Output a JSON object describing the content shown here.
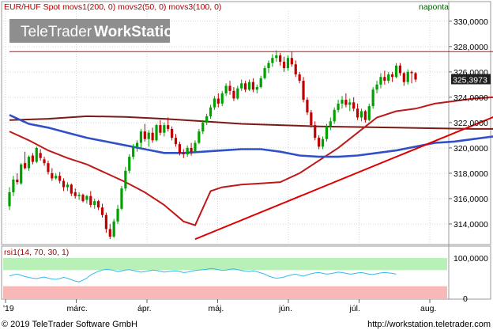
{
  "header": {
    "legend": "EUR/HUF Spot movs1(200, 0) movs2(50, 0) movs3(100, 0)",
    "period": "naponta",
    "watermark_light": "TeleTrader",
    "watermark_bold": "WorkStation"
  },
  "indicator": {
    "label": "rsi1(14, 70, 30, 1)"
  },
  "footer": {
    "copyright": "© 2019 TeleTrader Software GmbH",
    "url": "http://workstation.teletrader.com"
  },
  "colors": {
    "price_up": "#00a000",
    "price_down": "#c00000",
    "ma_blue": "#3050c8",
    "ma_red": "#c01818",
    "ma_brown": "#7a1a14",
    "trendline": "#e00000",
    "resistance": "#e00000",
    "rsi_line": "#33bbee",
    "rsi_overbought": "#b8f0b8",
    "rsi_oversold": "#f8b8b8",
    "legend_text": "#b00000",
    "period_text": "#006000"
  },
  "chart_data": {
    "type": "candlestick",
    "title": "EUR/HUF Spot",
    "x_labels": [
      "'19",
      "márc.",
      "ápr.",
      "máj.",
      "jún.",
      "júl.",
      "aug."
    ],
    "y_ticks": [
      "314,0000",
      "316,0000",
      "318,0000",
      "320,0000",
      "322,0000",
      "324,0000",
      "326,0000",
      "328,0000",
      "330,0000"
    ],
    "ylim": [
      312.5,
      330.8
    ],
    "last_price": "325,3973",
    "grid": true,
    "series": [
      {
        "name": "movs1(200, 0)",
        "color": "#7a1a14",
        "values": [
          [
            0,
            322.2
          ],
          [
            10,
            322.3
          ],
          [
            20,
            322.5
          ],
          [
            30,
            322.45
          ],
          [
            40,
            322.3
          ],
          [
            50,
            322.1
          ],
          [
            60,
            321.9
          ],
          [
            70,
            321.8
          ],
          [
            80,
            321.7
          ],
          [
            90,
            321.65
          ],
          [
            100,
            321.6
          ],
          [
            110,
            321.55
          ],
          [
            120,
            321.5
          ],
          [
            130,
            321.5
          ],
          [
            140,
            321.45
          ],
          [
            146,
            321.5
          ]
        ]
      },
      {
        "name": "movs2(50, 0)",
        "color": "#c01818",
        "values": [
          [
            0,
            321.3
          ],
          [
            5,
            320.6
          ],
          [
            10,
            319.8
          ],
          [
            15,
            319.2
          ],
          [
            20,
            318.7
          ],
          [
            25,
            318.0
          ],
          [
            30,
            317.3
          ],
          [
            35,
            316.5
          ],
          [
            40,
            315.5
          ],
          [
            45,
            314.2
          ],
          [
            48,
            313.9
          ],
          [
            52,
            316.6
          ],
          [
            55,
            316.9
          ],
          [
            60,
            317.1
          ],
          [
            65,
            317.2
          ],
          [
            70,
            317.3
          ],
          [
            75,
            318.0
          ],
          [
            80,
            319.0
          ],
          [
            85,
            320.0
          ],
          [
            90,
            321.2
          ],
          [
            95,
            322.4
          ],
          [
            100,
            322.9
          ],
          [
            105,
            323.1
          ],
          [
            110,
            323.5
          ],
          [
            115,
            323.7
          ],
          [
            120,
            323.9
          ],
          [
            125,
            324.0
          ],
          [
            130,
            324.1
          ],
          [
            135,
            324.2
          ],
          [
            140,
            324.3
          ]
        ]
      },
      {
        "name": "movs3(100, 0)",
        "color": "#3050c8",
        "values": [
          [
            0,
            322.6
          ],
          [
            5,
            321.9
          ],
          [
            10,
            321.6
          ],
          [
            15,
            321.2
          ],
          [
            20,
            320.8
          ],
          [
            25,
            320.5
          ],
          [
            30,
            320.2
          ],
          [
            35,
            319.9
          ],
          [
            40,
            319.6
          ],
          [
            45,
            319.6
          ],
          [
            50,
            319.7
          ],
          [
            55,
            319.8
          ],
          [
            60,
            319.9
          ],
          [
            65,
            319.9
          ],
          [
            70,
            319.7
          ],
          [
            75,
            319.4
          ],
          [
            80,
            319.3
          ],
          [
            85,
            319.3
          ],
          [
            90,
            319.4
          ],
          [
            95,
            319.6
          ],
          [
            100,
            319.8
          ],
          [
            105,
            320.1
          ],
          [
            110,
            320.4
          ],
          [
            115,
            320.5
          ],
          [
            120,
            320.7
          ],
          [
            125,
            320.9
          ],
          [
            130,
            321.1
          ],
          [
            135,
            321.6
          ],
          [
            140,
            322.2
          ]
        ]
      },
      {
        "name": "trendline",
        "color": "#e00000",
        "values": [
          [
            48,
            312.8
          ],
          [
            148,
            325.3
          ]
        ]
      },
      {
        "name": "resistance",
        "color": "#e00000",
        "values": [
          [
            0,
            327.6
          ],
          [
            148,
            327.6
          ]
        ]
      }
    ],
    "candles": [
      [
        315.4,
        316.9,
        315.1,
        316.5
      ],
      [
        316.5,
        317.8,
        316.2,
        317.5
      ],
      [
        317.5,
        318.0,
        317.1,
        317.3
      ],
      [
        317.2,
        318.8,
        317.1,
        318.7
      ],
      [
        318.8,
        319.7,
        318.3,
        318.4
      ],
      [
        318.4,
        319.4,
        318.2,
        319.3
      ],
      [
        319.4,
        319.6,
        318.7,
        318.9
      ],
      [
        318.9,
        320.1,
        318.8,
        320.0
      ],
      [
        319.6,
        319.9,
        319.0,
        319.2
      ],
      [
        319.1,
        319.3,
        318.6,
        318.8
      ],
      [
        318.8,
        319.0,
        317.9,
        318.1
      ],
      [
        318.0,
        318.4,
        317.4,
        317.6
      ],
      [
        317.6,
        318.0,
        317.5,
        317.8
      ],
      [
        317.8,
        318.1,
        317.2,
        317.4
      ],
      [
        317.4,
        317.6,
        316.6,
        316.9
      ],
      [
        316.9,
        317.3,
        316.6,
        317.1
      ],
      [
        317.1,
        317.2,
        316.2,
        316.4
      ],
      [
        316.5,
        316.8,
        316.0,
        316.2
      ],
      [
        316.2,
        316.5,
        315.9,
        316.3
      ],
      [
        316.3,
        316.4,
        315.7,
        315.8
      ],
      [
        315.9,
        316.3,
        315.6,
        316.2
      ],
      [
        316.2,
        316.6,
        315.3,
        315.5
      ],
      [
        315.5,
        316.0,
        315.2,
        315.8
      ],
      [
        315.8,
        315.9,
        315.1,
        315.3
      ],
      [
        315.3,
        315.6,
        314.5,
        314.7
      ],
      [
        314.7,
        314.9,
        313.3,
        313.6
      ],
      [
        313.6,
        314.0,
        312.8,
        313.0
      ],
      [
        313.0,
        314.4,
        312.9,
        314.2
      ],
      [
        314.2,
        315.5,
        314.0,
        315.2
      ],
      [
        315.2,
        317.0,
        315.1,
        316.8
      ],
      [
        316.8,
        318.5,
        316.6,
        318.2
      ],
      [
        318.2,
        319.5,
        318.0,
        319.3
      ],
      [
        319.3,
        320.3,
        319.1,
        320.1
      ],
      [
        320.1,
        320.6,
        319.7,
        320.4
      ],
      [
        320.4,
        321.5,
        320.0,
        321.3
      ],
      [
        321.3,
        321.9,
        320.5,
        320.7
      ],
      [
        320.7,
        321.4,
        320.1,
        321.2
      ],
      [
        321.2,
        321.6,
        320.4,
        320.6
      ],
      [
        320.6,
        321.9,
        320.5,
        321.8
      ],
      [
        321.8,
        322.2,
        321.0,
        321.2
      ],
      [
        321.2,
        322.0,
        320.9,
        321.8
      ],
      [
        321.8,
        322.4,
        321.3,
        321.5
      ],
      [
        321.5,
        321.7,
        320.6,
        320.8
      ],
      [
        320.8,
        321.1,
        320.1,
        320.3
      ],
      [
        320.3,
        320.5,
        319.4,
        319.6
      ],
      [
        319.6,
        319.9,
        319.2,
        319.5
      ],
      [
        319.5,
        320.2,
        319.3,
        320.0
      ],
      [
        320.0,
        320.4,
        319.4,
        319.7
      ],
      [
        319.7,
        320.6,
        319.6,
        320.4
      ],
      [
        320.4,
        321.5,
        320.3,
        321.3
      ],
      [
        321.3,
        322.2,
        321.1,
        322.0
      ],
      [
        322.0,
        322.7,
        321.8,
        322.5
      ],
      [
        322.5,
        323.4,
        322.3,
        323.2
      ],
      [
        323.2,
        324.1,
        323.0,
        323.9
      ],
      [
        323.9,
        324.3,
        323.2,
        323.5
      ],
      [
        323.5,
        324.5,
        323.3,
        324.3
      ],
      [
        324.3,
        325.1,
        324.1,
        324.9
      ],
      [
        324.9,
        325.3,
        324.2,
        324.5
      ],
      [
        324.5,
        324.8,
        323.7,
        323.9
      ],
      [
        323.9,
        324.9,
        323.8,
        324.7
      ],
      [
        324.7,
        325.4,
        324.5,
        325.1
      ],
      [
        325.1,
        325.3,
        324.4,
        324.6
      ],
      [
        324.6,
        325.4,
        324.5,
        325.2
      ],
      [
        325.2,
        325.5,
        324.4,
        324.6
      ],
      [
        324.6,
        325.0,
        324.3,
        324.8
      ],
      [
        324.8,
        325.7,
        324.7,
        325.5
      ],
      [
        325.5,
        326.5,
        325.4,
        326.3
      ],
      [
        326.3,
        326.9,
        325.9,
        326.7
      ],
      [
        326.7,
        327.4,
        326.4,
        327.1
      ],
      [
        327.1,
        327.7,
        326.8,
        327.3
      ],
      [
        327.3,
        327.5,
        326.5,
        326.8
      ],
      [
        326.8,
        327.2,
        326.0,
        326.3
      ],
      [
        326.3,
        327.3,
        326.1,
        327.1
      ],
      [
        327.1,
        327.6,
        326.4,
        326.6
      ],
      [
        326.6,
        326.9,
        325.6,
        325.8
      ],
      [
        325.8,
        326.0,
        325.1,
        325.3
      ],
      [
        325.3,
        325.6,
        323.6,
        323.8
      ],
      [
        323.8,
        324.0,
        322.6,
        322.8
      ],
      [
        322.8,
        323.0,
        321.6,
        321.8
      ],
      [
        321.8,
        322.1,
        320.6,
        320.8
      ],
      [
        320.8,
        321.0,
        319.9,
        320.1
      ],
      [
        320.1,
        320.9,
        319.9,
        320.7
      ],
      [
        320.7,
        321.9,
        320.5,
        321.7
      ],
      [
        321.7,
        322.4,
        321.4,
        322.1
      ],
      [
        322.1,
        323.2,
        321.9,
        323.0
      ],
      [
        323.0,
        323.8,
        322.8,
        323.5
      ],
      [
        323.5,
        324.1,
        323.1,
        323.8
      ],
      [
        323.8,
        324.3,
        323.2,
        323.4
      ],
      [
        323.4,
        323.9,
        322.9,
        323.6
      ],
      [
        323.6,
        324.0,
        322.9,
        323.1
      ],
      [
        323.1,
        323.5,
        322.2,
        322.4
      ],
      [
        322.4,
        323.1,
        322.1,
        322.9
      ],
      [
        322.9,
        323.0,
        322.0,
        322.2
      ],
      [
        322.2,
        323.5,
        322.1,
        323.3
      ],
      [
        323.3,
        324.8,
        323.1,
        324.6
      ],
      [
        324.6,
        325.3,
        324.3,
        325.0
      ],
      [
        325.0,
        325.9,
        324.7,
        325.6
      ],
      [
        325.6,
        326.1,
        325.0,
        325.3
      ],
      [
        325.3,
        326.0,
        325.1,
        325.8
      ],
      [
        325.8,
        326.0,
        325.2,
        325.6
      ],
      [
        325.6,
        326.7,
        325.5,
        326.5
      ],
      [
        326.5,
        326.7,
        325.7,
        325.9
      ],
      [
        325.9,
        326.0,
        324.9,
        325.2
      ],
      [
        325.2,
        326.2,
        325.0,
        326.0
      ],
      [
        326.0,
        326.1,
        325.1,
        325.9
      ],
      [
        325.9,
        326.0,
        325.2,
        325.4
      ]
    ],
    "rsi": {
      "name": "rsi1(14, 70, 30, 1)",
      "y_ticks": [
        "0",
        "100,0000"
      ],
      "ylim": [
        0,
        100
      ],
      "overbought": 70,
      "oversold": 30,
      "values": [
        55,
        58,
        60,
        57,
        54,
        52,
        50,
        49,
        51,
        53,
        50,
        48,
        47,
        49,
        52,
        50,
        46,
        43,
        41,
        45,
        50,
        58,
        63,
        67,
        70,
        72,
        71,
        69,
        66,
        68,
        70,
        71,
        69,
        67,
        65,
        66,
        68,
        70,
        69,
        67,
        65,
        66,
        67,
        68,
        66,
        64,
        65,
        67,
        69,
        70,
        71,
        72,
        74,
        73,
        71,
        69,
        70,
        72,
        73,
        71,
        69,
        67,
        66,
        68,
        66,
        63,
        60,
        55,
        52,
        50,
        51,
        53,
        56,
        58,
        60,
        57,
        55,
        58,
        61,
        63,
        64,
        62,
        60,
        61,
        63,
        65,
        64,
        62,
        60,
        61,
        63,
        64,
        62,
        60,
        59,
        61,
        63,
        64,
        63,
        62,
        60
      ]
    }
  }
}
